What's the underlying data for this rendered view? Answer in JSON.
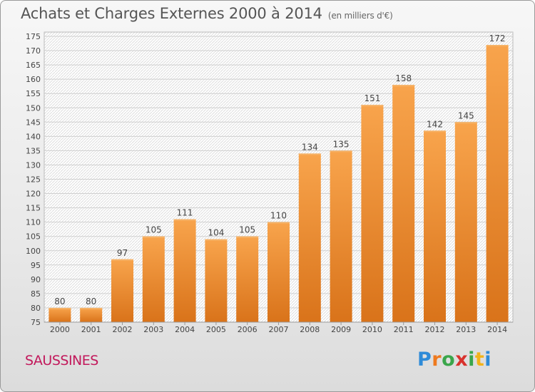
{
  "header": {
    "title": "Achats et Charges Externes 2000 à 2014",
    "subtitle": "(en milliers d'€)"
  },
  "footer": {
    "place": "SAUSSINES",
    "brand": "Proxiti"
  },
  "colors": {
    "bar_light": "#f8a44c",
    "bar_dark": "#d9731a",
    "place_text": "#c2185b"
  },
  "chart_data": {
    "type": "bar",
    "categories": [
      "2000",
      "2001",
      "2002",
      "2003",
      "2004",
      "2005",
      "2006",
      "2007",
      "2008",
      "2009",
      "2010",
      "2011",
      "2012",
      "2013",
      "2014"
    ],
    "values": [
      80,
      80,
      97,
      105,
      111,
      104,
      105,
      110,
      134,
      135,
      151,
      158,
      142,
      145,
      172
    ],
    "ylim": [
      75,
      175
    ],
    "yticks": [
      75,
      80,
      85,
      90,
      95,
      100,
      105,
      110,
      115,
      120,
      125,
      130,
      135,
      140,
      145,
      150,
      155,
      160,
      165,
      170,
      175
    ],
    "grid": true,
    "data_labels": true
  }
}
